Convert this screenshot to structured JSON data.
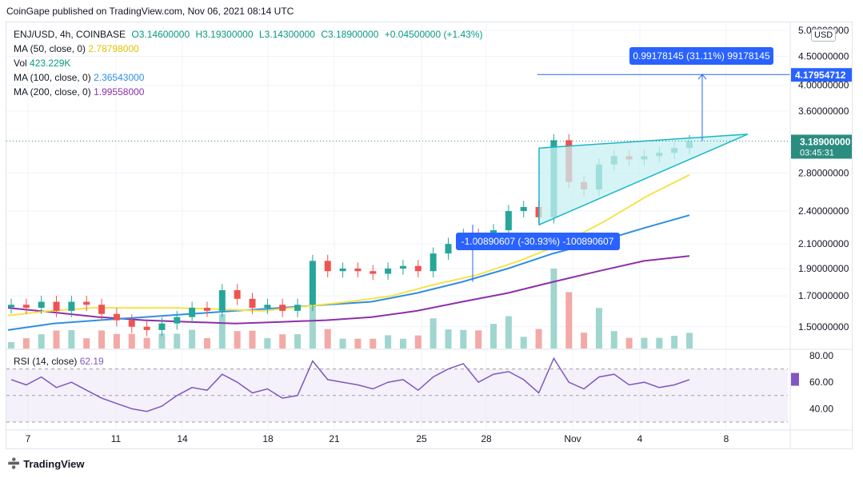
{
  "header": {
    "published": "CoinGape published on TradingView.com, Nov 06, 2021 08:14 UTC"
  },
  "legend": {
    "symbol": "ENJ/USD, 4h, COINBASE",
    "open": "O3.14600000",
    "high": "H3.19300000",
    "low": "L3.14300000",
    "close": "C3.18900000",
    "change": "+0.04500000 (+1.43%)",
    "ma50_label": "MA (50, close, 0)",
    "ma50_value": "2.78798000",
    "vol_label": "Vol",
    "vol_value": "423.229K",
    "ma100_label": "MA (100, close, 0)",
    "ma100_value": "2.36543000",
    "ma200_label": "MA (200, close, 0)",
    "ma200_value": "1.99558000"
  },
  "currency_button": "USD",
  "rsi_legend": {
    "label": "RSI (14, close)",
    "value": "62.19"
  },
  "branding": {
    "logo_text": "TradingView"
  },
  "annotations": {
    "target_box": "0.99178145 (31.11%) 99178145",
    "base_box": "-1.00890607 (-30.93%) -100890607"
  },
  "colors": {
    "up": "#26a69a",
    "down": "#ef5350",
    "ma50": "#f5e34a",
    "ma100": "#2e8fe0",
    "ma200": "#8e2fa8",
    "rsi": "#7e57c2",
    "triangle": "#17b7c9",
    "measure": "#2962ff",
    "price_tag": "#2b8c80"
  },
  "chart_data": {
    "type": "candlestick",
    "title": "ENJ/USD, 4h, COINBASE",
    "x_ticks": [
      "7",
      "11",
      "14",
      "18",
      "21",
      "25",
      "28",
      "Nov",
      "4",
      "8"
    ],
    "y_ticks": [
      "5.00000000",
      "4.50000000",
      "4.00000000",
      "3.60000000",
      "2.80000000",
      "2.40000000",
      "2.10000000",
      "1.90000000",
      "1.70000000",
      "1.50000000"
    ],
    "y_scale": "log",
    "price_labels": {
      "target": "4.17954712",
      "last": "3.18900000",
      "countdown": "03:45:31"
    },
    "rsi_ticks": [
      "80.00",
      "60.00",
      "40.00"
    ],
    "rsi_last": 62.19,
    "close_series_approx": [
      1.64,
      1.62,
      1.66,
      1.6,
      1.66,
      1.64,
      1.58,
      1.54,
      1.5,
      1.48,
      1.52,
      1.56,
      1.62,
      1.6,
      1.74,
      1.68,
      1.62,
      1.64,
      1.6,
      1.64,
      1.96,
      1.88,
      1.9,
      1.88,
      1.86,
      1.9,
      1.92,
      1.88,
      2.02,
      2.1,
      2.18,
      2.1,
      2.22,
      2.4,
      2.44,
      2.34,
      3.2,
      2.7,
      2.62,
      2.9,
      3.0,
      2.96,
      3.0,
      3.04,
      3.1,
      3.19
    ],
    "ma50_approx": [
      1.57,
      1.6,
      1.62,
      1.62,
      1.62,
      1.61,
      1.6,
      1.63,
      1.66,
      1.7,
      1.78,
      1.85,
      1.96,
      2.1,
      2.3,
      2.55,
      2.78
    ],
    "ma100_approx": [
      1.48,
      1.52,
      1.54,
      1.56,
      1.58,
      1.6,
      1.62,
      1.64,
      1.66,
      1.72,
      1.8,
      1.9,
      2.02,
      2.12,
      2.24,
      2.36
    ],
    "ma200_approx": [
      1.62,
      1.59,
      1.56,
      1.54,
      1.53,
      1.52,
      1.53,
      1.54,
      1.56,
      1.6,
      1.66,
      1.72,
      1.8,
      1.88,
      1.96,
      2.0
    ],
    "rsi_series_approx": [
      62,
      58,
      64,
      56,
      60,
      54,
      48,
      44,
      40,
      38,
      42,
      50,
      56,
      54,
      66,
      60,
      52,
      55,
      48,
      50,
      76,
      62,
      60,
      58,
      55,
      60,
      62,
      54,
      64,
      70,
      74,
      60,
      66,
      68,
      62,
      52,
      78,
      60,
      55,
      64,
      66,
      58,
      60,
      56,
      58,
      62
    ],
    "patterns": [
      "ascending triangle"
    ]
  }
}
